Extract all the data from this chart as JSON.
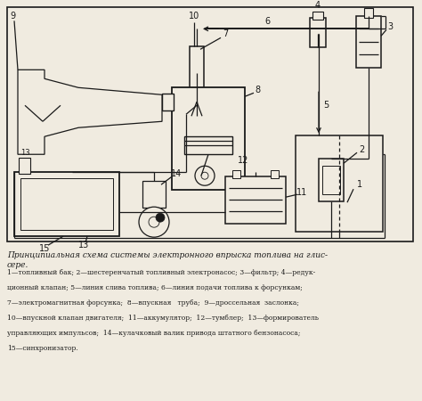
{
  "title": "Принципиальная схема системы электронного впрыска топлива на глис-\nсере.",
  "caption_lines": [
    "1—топливный бак; 2—шестеренчатый топливный электронасос; 3—фильтр; 4—редук-",
    "ционный клапан; 5—линия слива топлива; 6—линия подачи топлива к форсункам;",
    "7—электромагнитная форсунка;  8—впускная   труба;  9—дроссельная  заслонка;",
    "10—впускной клапан двигателя;  11—аккумулятор;  12—тумблер;  13—формирователь",
    "управляющих импульсов;  14—кулачковый валик привода штатного бензонасоса;",
    "15—синхронизатор."
  ],
  "bg_color": "#f0ebe0",
  "line_color": "#1a1a1a",
  "text_color": "#1a1a1a"
}
